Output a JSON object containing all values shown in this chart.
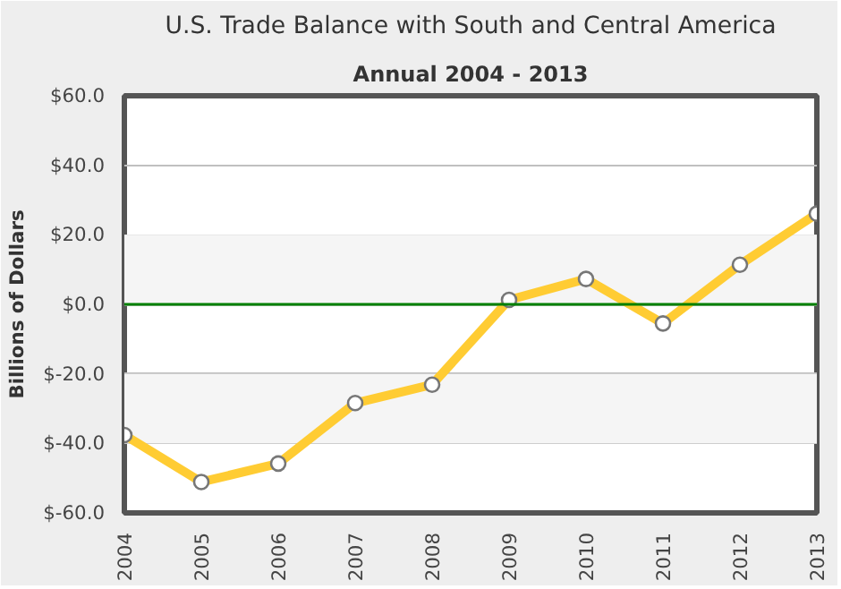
{
  "chart_data": {
    "type": "line",
    "title": "U.S. Trade Balance with South and Central America",
    "subtitle": "Annual 2004 - 2013",
    "ylabel": "Billions of Dollars",
    "categories": [
      "2004",
      "2005",
      "2006",
      "2007",
      "2008",
      "2009",
      "2010",
      "2011",
      "2012",
      "2013"
    ],
    "series": [
      {
        "color": "#ffcc33",
        "values": [
          -37.6,
          -51.1,
          -45.8,
          -28.4,
          -23.1,
          1.3,
          7.3,
          -5.5,
          11.4,
          26.1
        ]
      }
    ],
    "ylim": [
      -60,
      60
    ],
    "yticks": [
      {
        "value": -60,
        "label": "$-60.0"
      },
      {
        "value": -40,
        "label": "$-40.0"
      },
      {
        "value": -20,
        "label": "$-20.0"
      },
      {
        "value": 0,
        "label": "$0.0"
      },
      {
        "value": 20,
        "label": "$20.0"
      },
      {
        "value": 40,
        "label": "$40.0"
      },
      {
        "value": 60,
        "label": "$60.0"
      }
    ],
    "ref_lines": [
      {
        "axis": "y",
        "value": 0,
        "color": "#008000"
      }
    ],
    "bands": [
      {
        "axis": "y",
        "from": 0,
        "to": 20,
        "color": "#f5f5f5"
      },
      {
        "axis": "y",
        "from": -40,
        "to": -20,
        "color": "#f5f5f5"
      }
    ],
    "grid": "y",
    "marker": "circle",
    "line_style": "solid"
  }
}
